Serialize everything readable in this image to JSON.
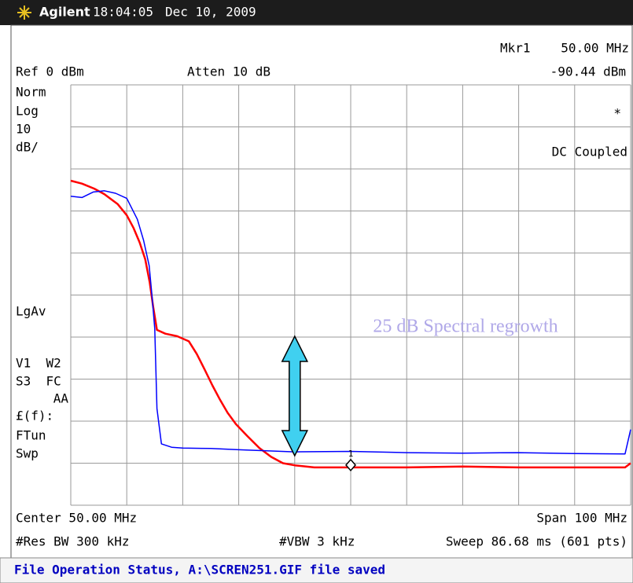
{
  "header": {
    "brand": "Agilent",
    "time": "18:04:05",
    "date": "Dec 10, 2009"
  },
  "readouts": {
    "marker_name": "Mkr1",
    "marker_freq": "50.00 MHz",
    "marker_level": "-90.44 dBm",
    "ref": "Ref 0 dBm",
    "atten": "Atten 10 dB",
    "scale": [
      "Norm",
      "Log",
      "10",
      "dB/"
    ],
    "star": "*",
    "coupling": "DC Coupled",
    "left": [
      "LgAv",
      "V1  W2",
      "S3  FC",
      "AA",
      "£(f):",
      "FTun",
      "Swp"
    ],
    "center": "Center 50.00 MHz",
    "span": "Span 100 MHz",
    "rbw": "#Res BW 300 kHz",
    "vbw": "#VBW 3 kHz",
    "sweep": "Sweep 86.68 ms (601 pts)"
  },
  "status": "File Operation Status, A:\\SCREN251.GIF file saved",
  "chart_data": {
    "type": "line",
    "annotation": "25 dB Spectral regrowth",
    "xlim": [
      0,
      100
    ],
    "ylim": [
      -100,
      0
    ],
    "xticks": [
      0,
      10,
      20,
      30,
      40,
      50,
      60,
      70,
      80,
      90,
      100
    ],
    "yticks": [
      0,
      -10,
      -20,
      -30,
      -40,
      -50,
      -60,
      -70,
      -80,
      -90,
      -100
    ],
    "grid": true,
    "marker": {
      "label": "1",
      "x": 50,
      "y": -90.44
    },
    "series": [
      {
        "color": "#ff0000",
        "x": [
          0,
          2,
          4.2,
          6,
          8.4,
          10,
          11.2,
          12.3,
          13.3,
          14.1,
          14.7,
          15.4,
          16.9,
          19,
          21.1,
          22.5,
          23.9,
          25.3,
          26.7,
          28,
          29.5,
          31.5,
          33.7,
          35.8,
          37.9,
          40,
          43.5,
          50,
          60,
          70,
          80,
          90,
          99,
          100
        ],
        "values": [
          -22.8,
          -23.5,
          -24.7,
          -26,
          -28.4,
          -31,
          -34,
          -37.5,
          -41.5,
          -47,
          -52.7,
          -58.3,
          -59.2,
          -59.8,
          -61,
          -64,
          -67.7,
          -71.5,
          -75,
          -78,
          -80.7,
          -83.5,
          -86.4,
          -88.5,
          -90,
          -90.5,
          -91,
          -91,
          -91,
          -90.8,
          -91,
          -91,
          -91,
          -90
        ]
      },
      {
        "color": "#0000ff",
        "x": [
          0,
          2,
          4,
          6,
          8,
          10,
          11.9,
          13,
          14,
          14.5,
          15,
          15.4,
          16.2,
          18,
          20,
          25,
          30,
          40,
          50,
          60,
          70,
          80,
          90,
          99,
          100
        ],
        "values": [
          -26.5,
          -26.8,
          -25.5,
          -25.2,
          -25.8,
          -27,
          -32,
          -37,
          -43,
          -50,
          -58,
          -77,
          -85.4,
          -86.2,
          -86.4,
          -86.5,
          -86.8,
          -87.3,
          -87.2,
          -87.5,
          -87.6,
          -87.5,
          -87.7,
          -87.8,
          -82
        ]
      }
    ]
  }
}
